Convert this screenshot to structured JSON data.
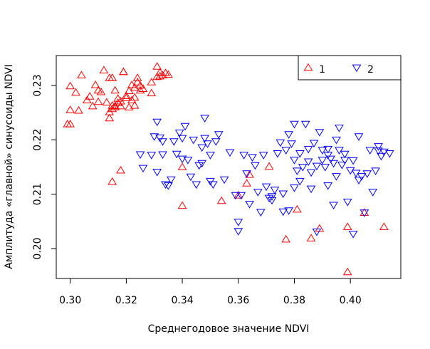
{
  "chart_data": {
    "type": "scatter",
    "title": "",
    "xlabel": "Среднегодовое значение NDVI",
    "ylabel": "Амплитуда «главной» синусоиды NDVI",
    "xlim": [
      0.295,
      0.418
    ],
    "ylim": [
      0.1945,
      0.2355
    ],
    "xticks": [
      0.3,
      0.32,
      0.34,
      0.36,
      0.38,
      0.4
    ],
    "yticks": [
      0.2,
      0.21,
      0.22,
      0.23
    ],
    "xtick_labels": [
      "0.30",
      "0.32",
      "0.34",
      "0.36",
      "0.38",
      "0.40"
    ],
    "ytick_labels": [
      "0.20",
      "0.21",
      "0.22",
      "0.23"
    ],
    "legend_position": "top-right",
    "grid": false,
    "series": [
      {
        "name": "1",
        "marker": "triangle-up",
        "color": "#ff0000",
        "points": [
          [
            0.299,
            0.2229
          ],
          [
            0.3,
            0.2229
          ],
          [
            0.3,
            0.2299
          ],
          [
            0.3,
            0.2255
          ],
          [
            0.302,
            0.2287
          ],
          [
            0.303,
            0.2254
          ],
          [
            0.304,
            0.2319
          ],
          [
            0.306,
            0.2273
          ],
          [
            0.307,
            0.228
          ],
          [
            0.308,
            0.2262
          ],
          [
            0.309,
            0.2301
          ],
          [
            0.31,
            0.227
          ],
          [
            0.31,
            0.2291
          ],
          [
            0.311,
            0.2288
          ],
          [
            0.312,
            0.2328
          ],
          [
            0.313,
            0.2269
          ],
          [
            0.314,
            0.224
          ],
          [
            0.314,
            0.2251
          ],
          [
            0.314,
            0.2314
          ],
          [
            0.315,
            0.2314
          ],
          [
            0.315,
            0.2257
          ],
          [
            0.315,
            0.2263
          ],
          [
            0.316,
            0.226
          ],
          [
            0.316,
            0.2291
          ],
          [
            0.316,
            0.2262
          ],
          [
            0.317,
            0.2276
          ],
          [
            0.317,
            0.2268
          ],
          [
            0.318,
            0.2271
          ],
          [
            0.318,
            0.2262
          ],
          [
            0.319,
            0.2325
          ],
          [
            0.319,
            0.2325
          ],
          [
            0.32,
            0.2281
          ],
          [
            0.32,
            0.2277
          ],
          [
            0.321,
            0.226
          ],
          [
            0.321,
            0.229
          ],
          [
            0.322,
            0.2301
          ],
          [
            0.322,
            0.2273
          ],
          [
            0.323,
            0.2263
          ],
          [
            0.323,
            0.2278
          ],
          [
            0.323,
            0.2296
          ],
          [
            0.324,
            0.2306
          ],
          [
            0.324,
            0.2314
          ],
          [
            0.325,
            0.2291
          ],
          [
            0.325,
            0.23
          ],
          [
            0.326,
            0.2294
          ],
          [
            0.329,
            0.2286
          ],
          [
            0.329,
            0.2306
          ],
          [
            0.331,
            0.2316
          ],
          [
            0.331,
            0.2335
          ],
          [
            0.332,
            0.2324
          ],
          [
            0.332,
            0.2317
          ],
          [
            0.333,
            0.2319
          ],
          [
            0.334,
            0.2323
          ],
          [
            0.335,
            0.232
          ],
          [
            0.315,
            0.2123
          ],
          [
            0.318,
            0.2144
          ],
          [
            0.34,
            0.2079
          ],
          [
            0.34,
            0.215
          ],
          [
            0.354,
            0.2088
          ],
          [
            0.36,
            0.2098
          ],
          [
            0.363,
            0.212
          ],
          [
            0.364,
            0.2136
          ],
          [
            0.371,
            0.2151
          ],
          [
            0.377,
            0.2017
          ],
          [
            0.381,
            0.2072
          ],
          [
            0.386,
            0.2019
          ],
          [
            0.389,
            0.2037
          ],
          [
            0.399,
            0.204
          ],
          [
            0.399,
            0.1957
          ],
          [
            0.405,
            0.2066
          ],
          [
            0.412,
            0.204
          ]
        ]
      },
      {
        "name": "2",
        "marker": "triangle-down",
        "color": "#0000ff",
        "points": [
          [
            0.325,
            0.2173
          ],
          [
            0.326,
            0.2148
          ],
          [
            0.329,
            0.2172
          ],
          [
            0.33,
            0.2206
          ],
          [
            0.331,
            0.2233
          ],
          [
            0.331,
            0.2141
          ],
          [
            0.332,
            0.2204
          ],
          [
            0.333,
            0.2197
          ],
          [
            0.333,
            0.2173
          ],
          [
            0.334,
            0.2118
          ],
          [
            0.335,
            0.2116
          ],
          [
            0.336,
            0.2127
          ],
          [
            0.337,
            0.2197
          ],
          [
            0.338,
            0.2174
          ],
          [
            0.339,
            0.2213
          ],
          [
            0.34,
            0.2203
          ],
          [
            0.34,
            0.2165
          ],
          [
            0.341,
            0.2225
          ],
          [
            0.342,
            0.2163
          ],
          [
            0.343,
            0.2132
          ],
          [
            0.344,
            0.22
          ],
          [
            0.345,
            0.2118
          ],
          [
            0.346,
            0.2153
          ],
          [
            0.347,
            0.2186
          ],
          [
            0.347,
            0.2157
          ],
          [
            0.348,
            0.224
          ],
          [
            0.348,
            0.2203
          ],
          [
            0.349,
            0.2193
          ],
          [
            0.35,
            0.2172
          ],
          [
            0.35,
            0.2124
          ],
          [
            0.351,
            0.2118
          ],
          [
            0.352,
            0.2197
          ],
          [
            0.353,
            0.221
          ],
          [
            0.355,
            0.2127
          ],
          [
            0.357,
            0.2177
          ],
          [
            0.359,
            0.2098
          ],
          [
            0.36,
            0.2049
          ],
          [
            0.36,
            0.2032
          ],
          [
            0.361,
            0.2098
          ],
          [
            0.362,
            0.2172
          ],
          [
            0.363,
            0.2138
          ],
          [
            0.364,
            0.2082
          ],
          [
            0.365,
            0.2168
          ],
          [
            0.366,
            0.2153
          ],
          [
            0.367,
            0.2104
          ],
          [
            0.368,
            0.2067
          ],
          [
            0.369,
            0.2172
          ],
          [
            0.37,
            0.2114
          ],
          [
            0.371,
            0.2093
          ],
          [
            0.372,
            0.2096
          ],
          [
            0.373,
            0.2108
          ],
          [
            0.374,
            0.2175
          ],
          [
            0.375,
            0.2195
          ],
          [
            0.376,
            0.2068
          ],
          [
            0.377,
            0.2181
          ],
          [
            0.378,
            0.221
          ],
          [
            0.378,
            0.207
          ],
          [
            0.379,
            0.2193
          ],
          [
            0.38,
            0.2163
          ],
          [
            0.38,
            0.2229
          ],
          [
            0.381,
            0.2143
          ],
          [
            0.382,
            0.2175
          ],
          [
            0.383,
            0.215
          ],
          [
            0.384,
            0.2229
          ],
          [
            0.385,
            0.2183
          ],
          [
            0.385,
            0.216
          ],
          [
            0.386,
            0.214
          ],
          [
            0.387,
            0.2194
          ],
          [
            0.388,
            0.2152
          ],
          [
            0.389,
            0.2214
          ],
          [
            0.39,
            0.2181
          ],
          [
            0.391,
            0.215
          ],
          [
            0.392,
            0.2172
          ],
          [
            0.393,
            0.2165
          ],
          [
            0.394,
            0.208
          ],
          [
            0.395,
            0.22
          ],
          [
            0.396,
            0.2181
          ],
          [
            0.396,
            0.2222
          ],
          [
            0.397,
            0.2154
          ],
          [
            0.398,
            0.2163
          ],
          [
            0.399,
            0.2086
          ],
          [
            0.4,
            0.2144
          ],
          [
            0.401,
            0.2162
          ],
          [
            0.401,
            0.2027
          ],
          [
            0.402,
            0.2139
          ],
          [
            0.403,
            0.2126
          ],
          [
            0.403,
            0.2206
          ],
          [
            0.404,
            0.2133
          ],
          [
            0.405,
            0.2066
          ],
          [
            0.406,
            0.2138
          ],
          [
            0.407,
            0.2181
          ],
          [
            0.408,
            0.2104
          ],
          [
            0.409,
            0.2143
          ],
          [
            0.41,
            0.2188
          ],
          [
            0.41,
            0.218
          ],
          [
            0.411,
            0.217
          ],
          [
            0.412,
            0.2178
          ],
          [
            0.414,
            0.2175
          ],
          [
            0.388,
            0.2031
          ],
          [
            0.392,
            0.2183
          ],
          [
            0.39,
            0.2163
          ],
          [
            0.386,
            0.211
          ],
          [
            0.382,
            0.2124
          ],
          [
            0.38,
            0.2112
          ],
          [
            0.376,
            0.2101
          ],
          [
            0.372,
            0.2089
          ],
          [
            0.398,
            0.2174
          ],
          [
            0.395,
            0.2133
          ],
          [
            0.394,
            0.2157
          ],
          [
            0.392,
            0.2116
          ]
        ]
      }
    ]
  }
}
